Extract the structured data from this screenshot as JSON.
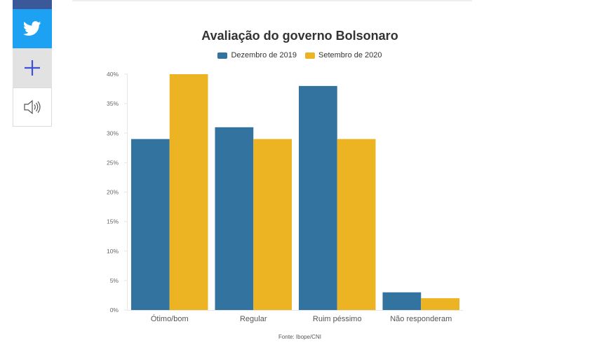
{
  "share": {
    "facebook_icon": "facebook-icon",
    "twitter_icon": "twitter-icon",
    "add_icon": "plus-icon",
    "audio_icon": "speaker-icon"
  },
  "colors": {
    "series1": "#32739f",
    "series2": "#ecb322",
    "facebook": "#3b5998",
    "twitter": "#1da1f2",
    "plus": "#3f51d8"
  },
  "chart_data": {
    "type": "bar",
    "title": "Avaliação do governo Bolsonaro",
    "categories": [
      "Ótimo/bom",
      "Regular",
      "Ruim péssimo",
      "Não responderam"
    ],
    "series": [
      {
        "name": "Dezembro de 2019",
        "values": [
          29,
          31,
          38,
          3
        ]
      },
      {
        "name": "Setembro de 2020",
        "values": [
          40,
          29,
          29,
          2
        ]
      }
    ],
    "ylim": [
      0,
      40
    ],
    "yticks": [
      "0%",
      "5%",
      "10%",
      "15%",
      "20%",
      "25%",
      "30%",
      "35%",
      "40%"
    ],
    "xlabel": "",
    "ylabel": "",
    "legend_position": "top-center",
    "grid": false,
    "source": "Fonte: Ibope/CNI"
  }
}
